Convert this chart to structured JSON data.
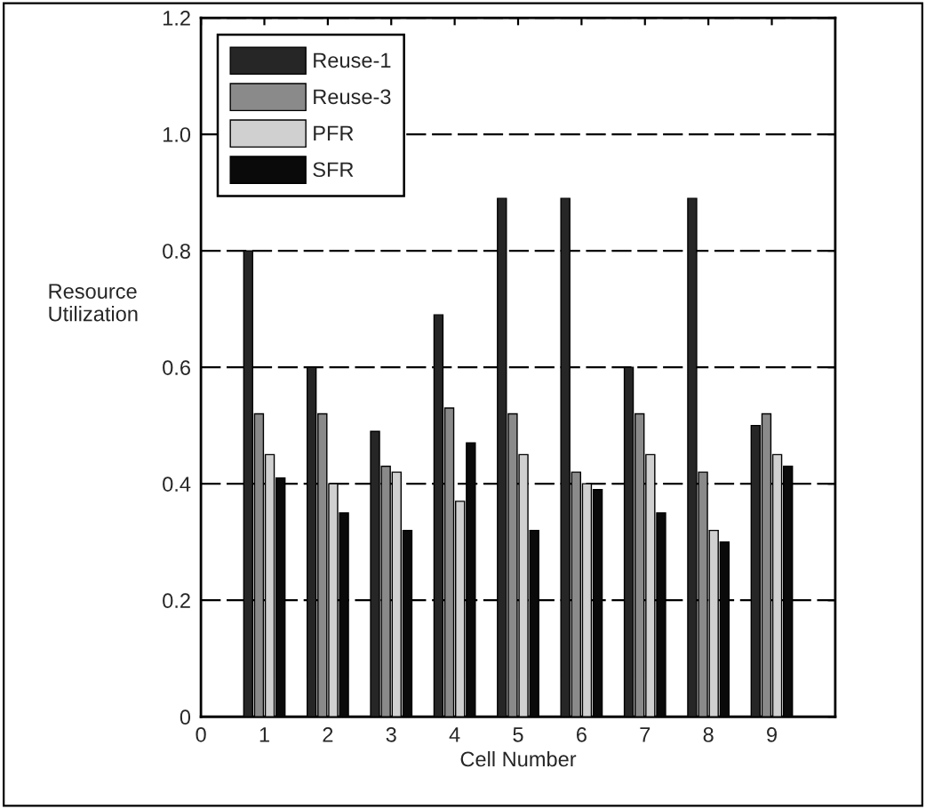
{
  "chart_data": {
    "type": "bar",
    "xlabel": "Cell Number",
    "ylabel": "Resource\nUtilization",
    "x": [
      1,
      2,
      3,
      4,
      5,
      6,
      7,
      8,
      9
    ],
    "series": [
      {
        "name": "Reuse-1",
        "color": "#262626",
        "values": [
          0.8,
          0.6,
          0.49,
          0.69,
          0.89,
          0.89,
          0.6,
          0.89,
          0.5
        ]
      },
      {
        "name": "Reuse-3",
        "color": "#8a8a8a",
        "values": [
          0.52,
          0.52,
          0.43,
          0.53,
          0.52,
          0.42,
          0.52,
          0.42,
          0.52
        ]
      },
      {
        "name": "PFR",
        "color": "#d0d0d0",
        "values": [
          0.45,
          0.4,
          0.42,
          0.37,
          0.45,
          0.4,
          0.45,
          0.32,
          0.45
        ]
      },
      {
        "name": "SFR",
        "color": "#0a0a0a",
        "values": [
          0.41,
          0.35,
          0.32,
          0.47,
          0.32,
          0.39,
          0.35,
          0.3,
          0.43
        ]
      }
    ],
    "xlim": [
      0,
      10
    ],
    "xticks": [
      0,
      1,
      2,
      3,
      4,
      5,
      6,
      7,
      8,
      9
    ],
    "ylim": [
      0,
      1.2
    ],
    "yticks": [
      0,
      0.2,
      0.4,
      0.6,
      0.8,
      {
        "value": 1,
        "label": "1.0"
      },
      1.2
    ],
    "grid": "y",
    "legend": "top left"
  }
}
